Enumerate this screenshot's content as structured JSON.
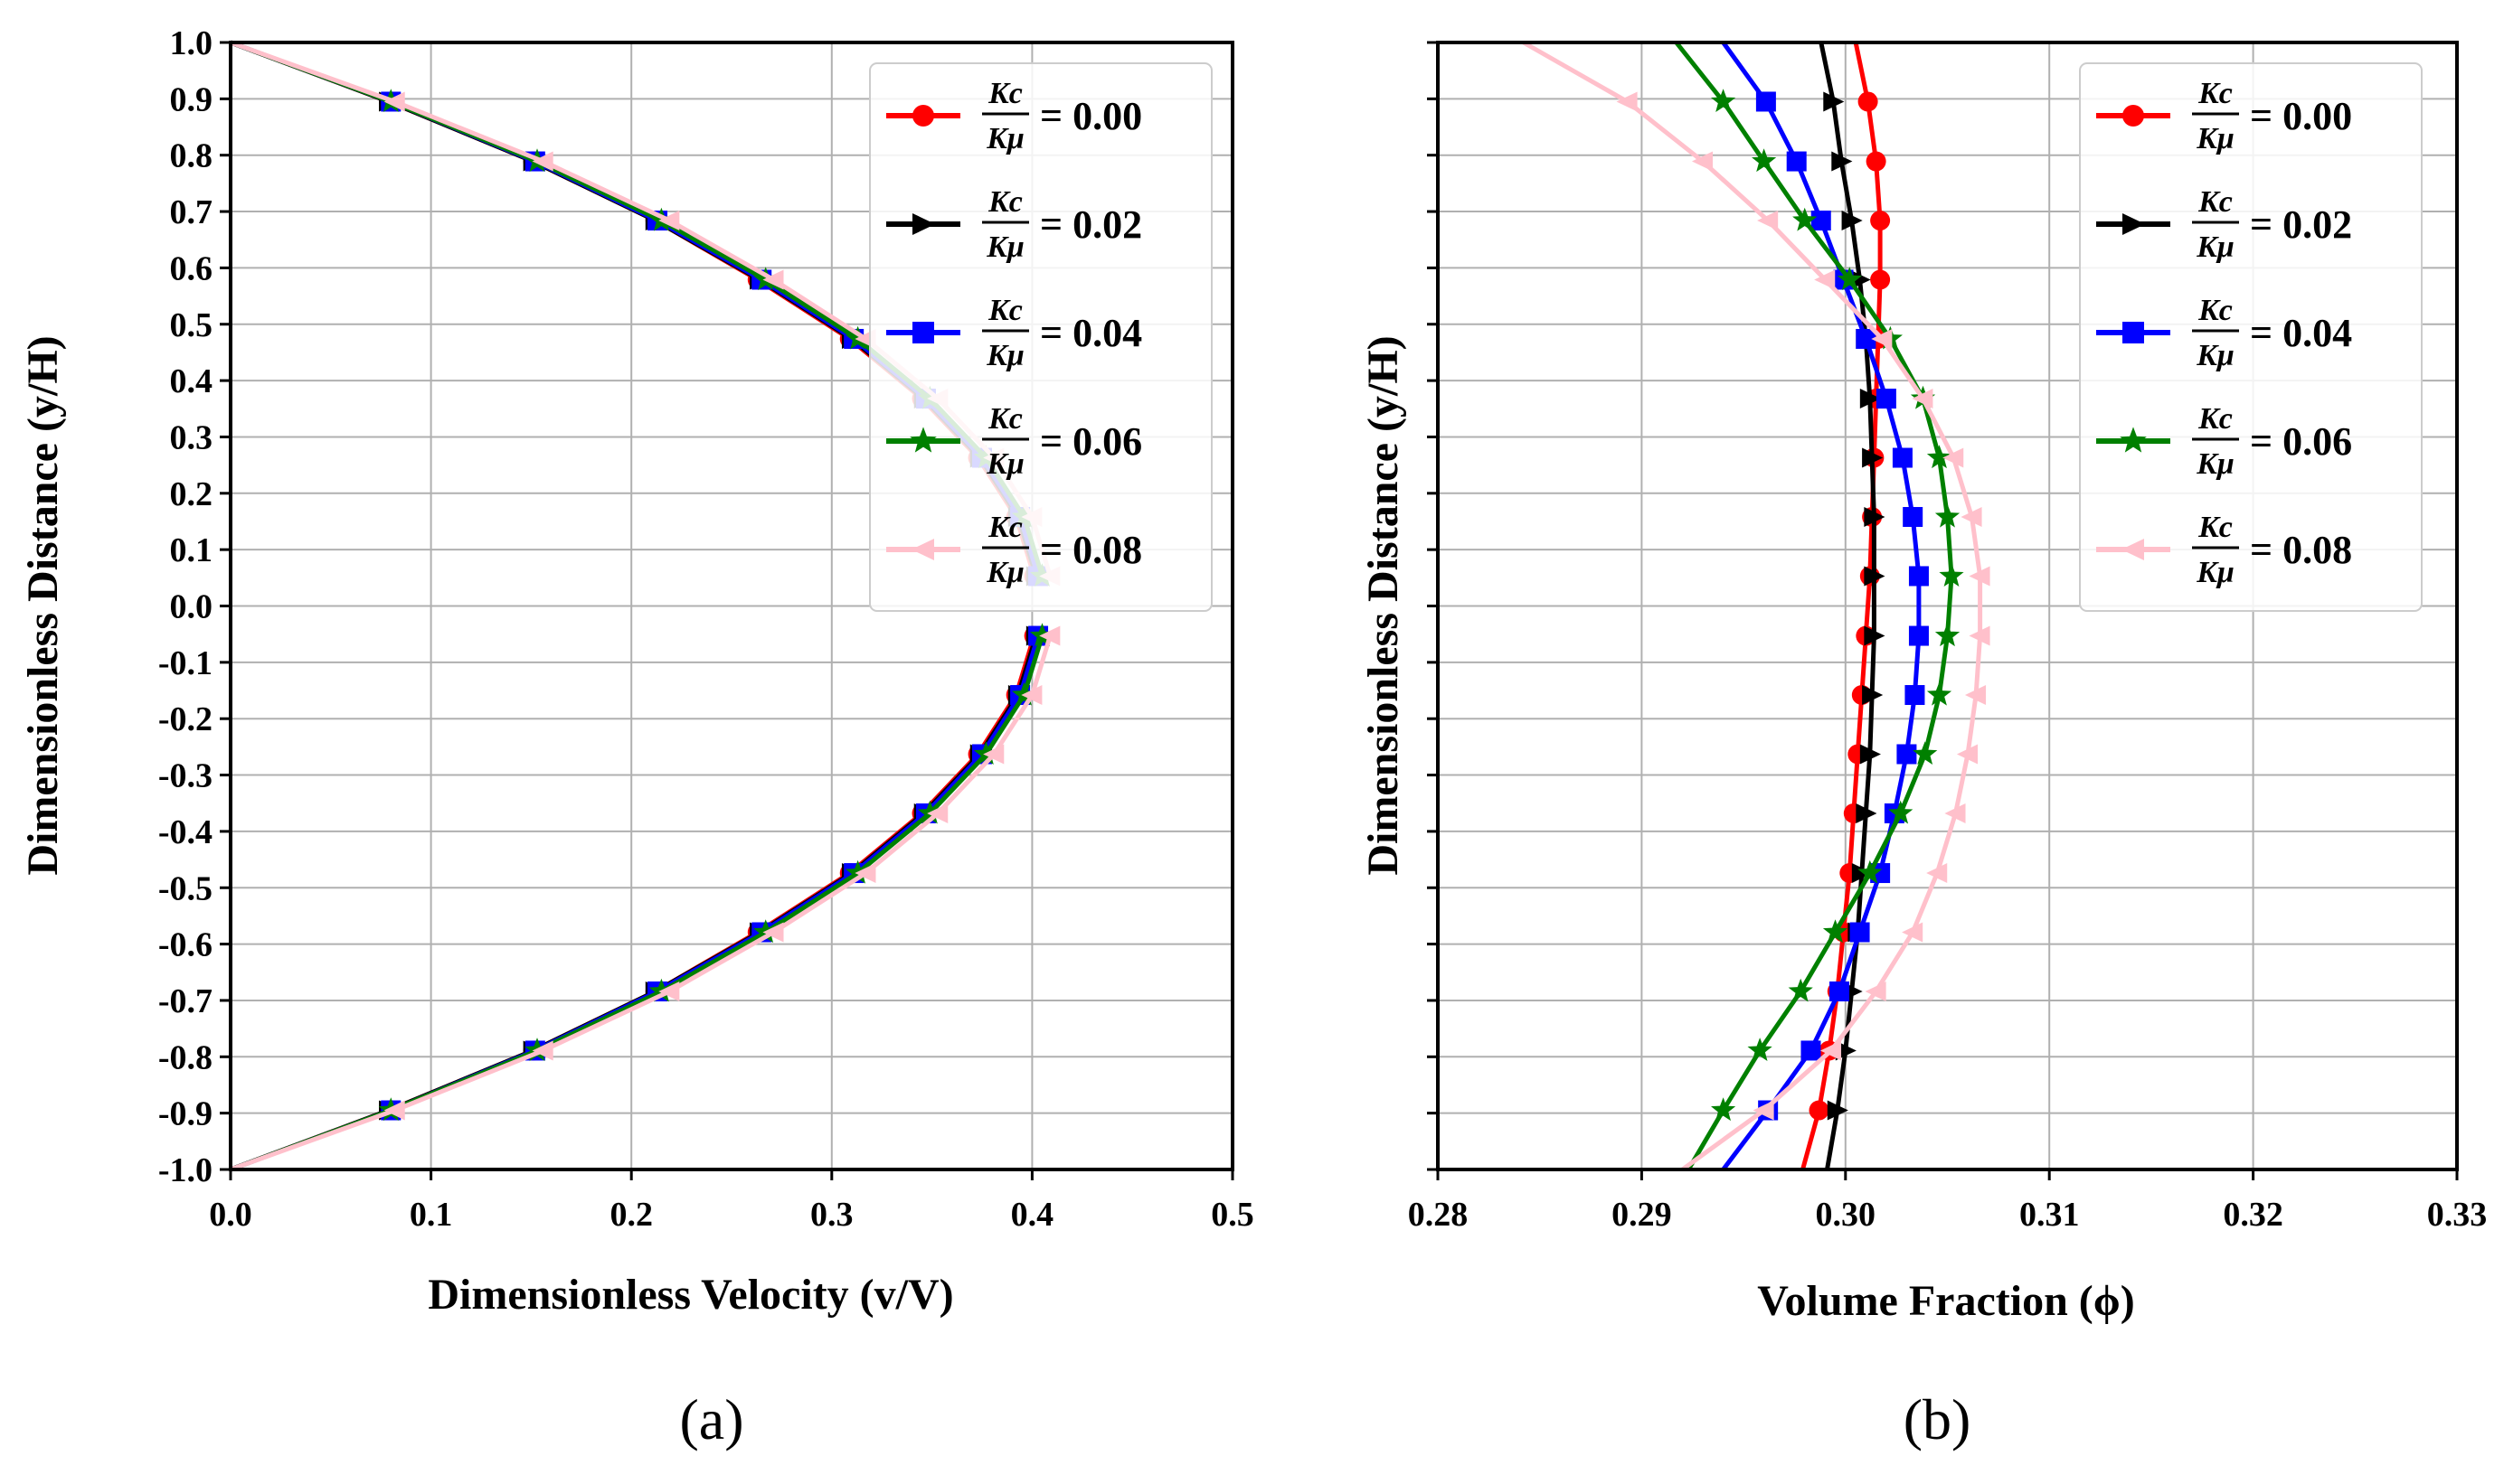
{
  "chart_data": [
    {
      "panel_label": "(a)",
      "type": "line",
      "title": "",
      "xlabel": "Dimensionless Velocity (v/V)",
      "ylabel": "Dimensionless Distance (y/H)",
      "xlim": [
        0.0,
        0.5
      ],
      "ylim": [
        -1.0,
        1.0
      ],
      "xticks": [
        "0.0",
        "0.1",
        "0.2",
        "0.3",
        "0.4",
        "0.5"
      ],
      "yticks": [
        "1.0",
        "0.9",
        "0.8",
        "0.7",
        "0.6",
        "0.5",
        "0.4",
        "0.3",
        "0.2",
        "0.1",
        "0.0",
        "-0.1",
        "-0.2",
        "-0.3",
        "-0.4",
        "-0.5",
        "-0.6",
        "-0.7",
        "-0.8",
        "-0.9",
        "-1.0"
      ],
      "grid": true,
      "legend_position": "top-right",
      "y": [
        1.0,
        0.895,
        0.789,
        0.684,
        0.579,
        0.474,
        0.368,
        0.263,
        0.158,
        0.053,
        -0.053,
        -0.158,
        -0.263,
        -0.368,
        -0.474,
        -0.579,
        -0.684,
        -0.789,
        -0.895,
        -1.0
      ],
      "series": [
        {
          "name": "Kc/Kμ = 0.00",
          "ratio": "0.00",
          "color": "#ff0000",
          "marker": "circle",
          "x": [
            0.0,
            0.079,
            0.151,
            0.212,
            0.263,
            0.309,
            0.345,
            0.373,
            0.392,
            0.401,
            0.401,
            0.392,
            0.373,
            0.345,
            0.309,
            0.263,
            0.212,
            0.151,
            0.079,
            0.0
          ]
        },
        {
          "name": "Kc/Kμ = 0.02",
          "ratio": "0.02",
          "color": "#000000",
          "marker": "triangle-right",
          "x": [
            0.0,
            0.079,
            0.151,
            0.212,
            0.264,
            0.31,
            0.346,
            0.374,
            0.393,
            0.402,
            0.402,
            0.393,
            0.374,
            0.346,
            0.31,
            0.264,
            0.212,
            0.151,
            0.079,
            0.0
          ]
        },
        {
          "name": "Kc/Kμ = 0.04",
          "ratio": "0.04",
          "color": "#0000ff",
          "marker": "square",
          "x": [
            0.0,
            0.08,
            0.152,
            0.213,
            0.265,
            0.311,
            0.347,
            0.375,
            0.394,
            0.403,
            0.403,
            0.394,
            0.375,
            0.347,
            0.311,
            0.265,
            0.213,
            0.152,
            0.08,
            0.0
          ]
        },
        {
          "name": "Kc/Kμ = 0.06",
          "ratio": "0.06",
          "color": "#008000",
          "marker": "star",
          "x": [
            0.0,
            0.08,
            0.153,
            0.215,
            0.267,
            0.313,
            0.349,
            0.377,
            0.396,
            0.405,
            0.405,
            0.396,
            0.377,
            0.349,
            0.313,
            0.267,
            0.215,
            0.153,
            0.08,
            0.0
          ]
        },
        {
          "name": "Kc/Kμ = 0.08",
          "ratio": "0.08",
          "color": "#ffc0cb",
          "marker": "triangle-left",
          "x": [
            0.0,
            0.082,
            0.156,
            0.219,
            0.271,
            0.317,
            0.353,
            0.381,
            0.4,
            0.409,
            0.409,
            0.4,
            0.381,
            0.353,
            0.317,
            0.271,
            0.219,
            0.156,
            0.082,
            0.0
          ]
        }
      ]
    },
    {
      "panel_label": "(b)",
      "type": "line",
      "title": "",
      "xlabel": "Volume Fraction (ϕ)",
      "ylabel": "Dimensionless Distance (y/H)",
      "xlim": [
        0.28,
        0.33
      ],
      "ylim": [
        -1.0,
        1.0
      ],
      "xticks": [
        "0.28",
        "0.29",
        "0.30",
        "0.31",
        "0.32",
        "0.33"
      ],
      "yticks": [],
      "grid": true,
      "legend_position": "top-right",
      "y": [
        1.0,
        0.895,
        0.789,
        0.684,
        0.579,
        0.474,
        0.368,
        0.263,
        0.158,
        0.053,
        -0.053,
        -0.158,
        -0.263,
        -0.368,
        -0.474,
        -0.579,
        -0.684,
        -0.789,
        -0.895,
        -1.0
      ],
      "series": [
        {
          "name": "Kc/Kμ = 0.00",
          "ratio": "0.00",
          "color": "#ff0000",
          "marker": "circle",
          "x": [
            0.3005,
            0.3011,
            0.3015,
            0.3017,
            0.3017,
            0.3016,
            0.3015,
            0.3014,
            0.3013,
            0.3012,
            0.301,
            0.3008,
            0.3006,
            0.3004,
            0.3002,
            0.2999,
            0.2996,
            0.2992,
            0.2987,
            0.2979
          ]
        },
        {
          "name": "Kc/Kμ = 0.02",
          "ratio": "0.02",
          "color": "#000000",
          "marker": "triangle-right",
          "x": [
            0.2988,
            0.2994,
            0.2998,
            0.3003,
            0.3007,
            0.301,
            0.3012,
            0.3013,
            0.3014,
            0.3014,
            0.3014,
            0.3013,
            0.3012,
            0.301,
            0.3008,
            0.3006,
            0.3003,
            0.3,
            0.2996,
            0.2991
          ]
        },
        {
          "name": "Kc/Kμ = 0.04",
          "ratio": "0.04",
          "color": "#0000ff",
          "marker": "square",
          "x": [
            0.294,
            0.2961,
            0.2976,
            0.2988,
            0.2999,
            0.301,
            0.302,
            0.3028,
            0.3033,
            0.3036,
            0.3036,
            0.3034,
            0.303,
            0.3024,
            0.3017,
            0.3007,
            0.2997,
            0.2983,
            0.2962,
            0.294
          ]
        },
        {
          "name": "Kc/Kμ = 0.06",
          "ratio": "0.06",
          "color": "#008000",
          "marker": "star",
          "x": [
            0.2917,
            0.294,
            0.296,
            0.298,
            0.3002,
            0.3022,
            0.3038,
            0.3046,
            0.305,
            0.3052,
            0.305,
            0.3046,
            0.3039,
            0.3027,
            0.3012,
            0.2995,
            0.2978,
            0.2958,
            0.294,
            0.2923
          ]
        },
        {
          "name": "Kc/Kμ = 0.08",
          "ratio": "0.08",
          "color": "#ffc0cb",
          "marker": "triangle-left",
          "x": [
            0.2842,
            0.2893,
            0.293,
            0.2962,
            0.299,
            0.3018,
            0.3038,
            0.3053,
            0.3062,
            0.3066,
            0.3066,
            0.3064,
            0.306,
            0.3054,
            0.3045,
            0.3033,
            0.3015,
            0.2993,
            0.296,
            0.292
          ]
        }
      ]
    }
  ]
}
